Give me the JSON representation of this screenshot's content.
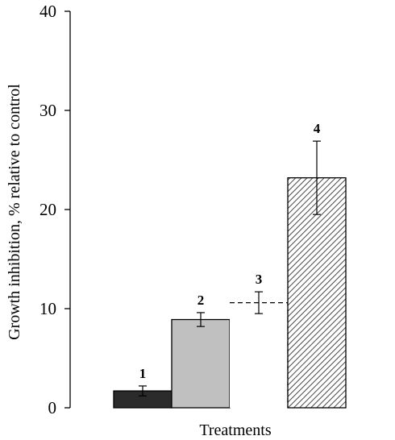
{
  "chart_data": {
    "type": "bar",
    "title": "",
    "xlabel": "Treatments",
    "ylabel": "Growth inhibition, % relative to control",
    "ylim": [
      0,
      40
    ],
    "yticks": [
      0,
      10,
      20,
      30,
      40
    ],
    "grid": false,
    "categories": [
      "1",
      "2",
      "3",
      "4"
    ],
    "values": [
      1.7,
      8.9,
      10.6,
      23.2
    ],
    "errors": [
      0.5,
      0.7,
      1.1,
      3.7
    ],
    "styles": [
      {
        "fill": "#2b2b2b",
        "stroke": "#000000",
        "pattern": "solid",
        "dashed": false
      },
      {
        "fill": "#c0c0c0",
        "stroke": "#000000",
        "pattern": "solid",
        "dashed": false
      },
      {
        "fill": "#ffffff",
        "stroke": "#000000",
        "pattern": "none",
        "dashed": true
      },
      {
        "fill": "#ffffff",
        "stroke": "#000000",
        "pattern": "diagonal-hatch",
        "dashed": false
      }
    ]
  }
}
